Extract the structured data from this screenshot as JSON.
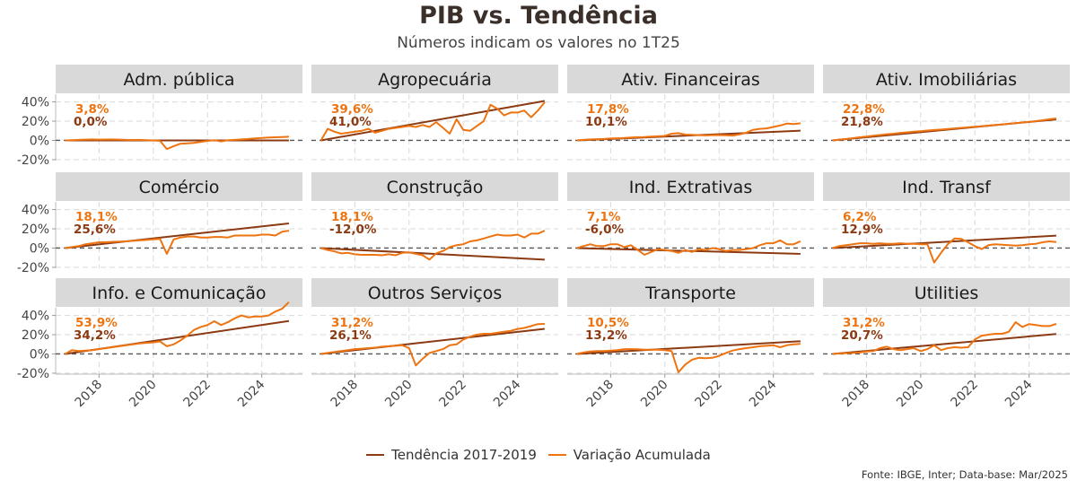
{
  "chart_data": {
    "type": "line",
    "title": "PIB vs. Tendência",
    "subtitle": "Números indicam os valores no 1T25",
    "xlabel": "",
    "ylabel": "",
    "x_start": 2016.75,
    "x_step": 0.25,
    "xlim": [
      2016.4,
      2025.5
    ],
    "ylim": [
      -20,
      45
    ],
    "yticks": [
      -20,
      0,
      20,
      40
    ],
    "ytick_labels": [
      "-20%",
      "0%",
      "20%",
      "40%"
    ],
    "xticks": [
      2018,
      2020,
      2022,
      2024
    ],
    "xtick_labels": [
      "2018",
      "2020",
      "2022",
      "2024"
    ],
    "grid": true,
    "legend_position": "bottom",
    "legend": [
      {
        "name": "Tendência 2017-2019",
        "color": "#8B3A12"
      },
      {
        "name": "Variação Acumulada",
        "color": "#EE7411"
      }
    ],
    "colors": {
      "trend": "#8B3A12",
      "actual": "#EE7411",
      "strip": "#D9D9D9",
      "grid": "#D9D9D9",
      "zero": "#555555"
    },
    "panels": [
      {
        "name": "Adm. pública",
        "actual_label": "3,8%",
        "trend_label": "0,0%",
        "trend_end": 0.0,
        "actual": [
          0,
          0.3,
          0.5,
          0.8,
          1,
          0.8,
          0.9,
          1.0,
          0.8,
          0.5,
          0.4,
          0.5,
          0.3,
          0,
          -0.5,
          -9,
          -6,
          -3.5,
          -3,
          -2.5,
          -1.5,
          -0.5,
          0.3,
          -1,
          0.2,
          0.5,
          1,
          1.5,
          2,
          2.5,
          3,
          3.2,
          3.5,
          3.8
        ]
      },
      {
        "name": "Agropecuária",
        "actual_label": "39,6%",
        "trend_label": "41,0%",
        "trend_end": 41.0,
        "actual": [
          0,
          12,
          9,
          7,
          8,
          9,
          10,
          12,
          8,
          10,
          12,
          13,
          14,
          15,
          14,
          16,
          14,
          19,
          13,
          7,
          22,
          11,
          10,
          15,
          20,
          37,
          33,
          26,
          29,
          29,
          31,
          24,
          31,
          39.6
        ]
      },
      {
        "name": "Ativ. Financeiras",
        "actual_label": "17,8%",
        "trend_label": "10,1%",
        "trend_end": 10.1,
        "actual": [
          0,
          0.5,
          1,
          1.3,
          1.5,
          2,
          2.2,
          2.5,
          3,
          3.3,
          3.5,
          4,
          4.3,
          4.6,
          7,
          7.5,
          6,
          5.8,
          5.5,
          5.2,
          5.5,
          5.6,
          5.3,
          5.0,
          6.2,
          8,
          11,
          12,
          12.5,
          14,
          15.5,
          17.5,
          17,
          17.8
        ]
      },
      {
        "name": "Ativ. Imobiliárias",
        "actual_label": "22,8%",
        "trend_label": "21,8%",
        "trend_end": 21.8,
        "actual": [
          0,
          0.8,
          1.5,
          2.3,
          3.2,
          4,
          4.8,
          5.6,
          6.4,
          7,
          7.8,
          8.4,
          9,
          9.6,
          10.2,
          10.8,
          11.3,
          11.9,
          12.5,
          13,
          13.6,
          14.2,
          14.8,
          15.4,
          16,
          16.6,
          17.3,
          18,
          18.6,
          19.3,
          20,
          21,
          22,
          22.8
        ]
      },
      {
        "name": "Comércio",
        "actual_label": "18,1%",
        "trend_label": "25,6%",
        "trend_end": 25.6,
        "actual": [
          0,
          1,
          2,
          4,
          5,
          6,
          6,
          6.5,
          6.8,
          7,
          7.5,
          8,
          8.5,
          9,
          9.5,
          -6,
          9,
          11,
          12,
          12,
          11,
          11,
          11.5,
          11.5,
          11,
          13,
          13,
          13,
          13,
          14,
          14,
          13,
          17,
          18.1
        ]
      },
      {
        "name": "Construção",
        "actual_label": "18,1%",
        "trend_label": "-12,0%",
        "trend_end": -12.0,
        "actual": [
          0,
          -2,
          -3.5,
          -5.5,
          -5,
          -6.5,
          -7,
          -7,
          -7,
          -7.5,
          -6.5,
          -7.5,
          -5,
          -4.5,
          -6,
          -7.5,
          -12,
          -5.5,
          -3,
          1,
          3,
          4,
          7,
          8,
          10,
          12,
          14,
          13,
          13,
          14,
          11,
          15,
          15,
          18.1
        ]
      },
      {
        "name": "Ind. Extrativas",
        "actual_label": "7,1%",
        "trend_label": "-6,0%",
        "trend_end": -6.0,
        "actual": [
          0,
          2,
          4,
          2,
          2,
          4,
          4,
          1,
          3,
          -2,
          -7,
          -4,
          -1,
          -2,
          -3,
          -5,
          -2,
          -4,
          -1,
          -2,
          0,
          -1,
          -3,
          -2,
          -2,
          -1,
          0,
          3,
          5,
          5,
          8,
          4,
          4,
          7.1
        ]
      },
      {
        "name": "Ind. Transf",
        "actual_label": "6,2%",
        "trend_label": "12,9%",
        "trend_end": 12.9,
        "actual": [
          0,
          2,
          3,
          4,
          5,
          5,
          4.5,
          5,
          4.5,
          4.5,
          5,
          4.5,
          4.5,
          4,
          4,
          -15,
          -5,
          4,
          10,
          9.5,
          6,
          2,
          -1,
          3,
          4,
          3.5,
          3,
          2.5,
          3,
          4,
          4.5,
          6,
          7,
          6.2
        ]
      },
      {
        "name": "Info. e Comunicação",
        "actual_label": "53,9%",
        "trend_label": "34,2%",
        "trend_end": 34.2,
        "actual": [
          0,
          4,
          3,
          3.5,
          4,
          5,
          6,
          7,
          8,
          9,
          10,
          11,
          11.5,
          12,
          13,
          8,
          10,
          14,
          19,
          25,
          28,
          30,
          34,
          30,
          33,
          37,
          40,
          38,
          39,
          39,
          40,
          44,
          47,
          53.9
        ]
      },
      {
        "name": "Outros Serviços",
        "actual_label": "31,2%",
        "trend_label": "26,1%",
        "trend_end": 26.1,
        "actual": [
          0,
          1,
          2,
          3,
          4,
          5,
          5.5,
          6,
          6.5,
          7.5,
          8,
          8.5,
          9,
          6,
          -12,
          -5,
          1,
          3,
          5,
          9,
          10,
          15,
          18,
          20,
          21,
          21,
          22,
          23,
          24,
          26,
          27,
          29,
          31,
          31.2
        ]
      },
      {
        "name": "Transporte",
        "actual_label": "10,5%",
        "trend_label": "13,2%",
        "trend_end": 13.2,
        "actual": [
          0,
          1.5,
          2.5,
          3,
          3,
          3.5,
          4,
          5,
          5,
          4.8,
          4.5,
          4.5,
          4.5,
          4,
          3,
          -19,
          -11,
          -6,
          -4,
          -4.5,
          -4,
          -2,
          1,
          3.5,
          5,
          6,
          7,
          8,
          8.5,
          9,
          7,
          9,
          10,
          10.5
        ]
      },
      {
        "name": "Utilities",
        "actual_label": "31,2%",
        "trend_label": "20,7%",
        "trend_end": 20.7,
        "actual": [
          0,
          0.5,
          0.8,
          1,
          1.5,
          2.5,
          3,
          6,
          7.5,
          5,
          4,
          5,
          6,
          3,
          5,
          9,
          4,
          6,
          7,
          6.5,
          7,
          15,
          19,
          20,
          21,
          21,
          23,
          33,
          28,
          31,
          30,
          29,
          29,
          31.2
        ]
      }
    ]
  },
  "footer": {
    "source": "Fonte: IBGE, Inter; Data-base: Mar/2025"
  }
}
